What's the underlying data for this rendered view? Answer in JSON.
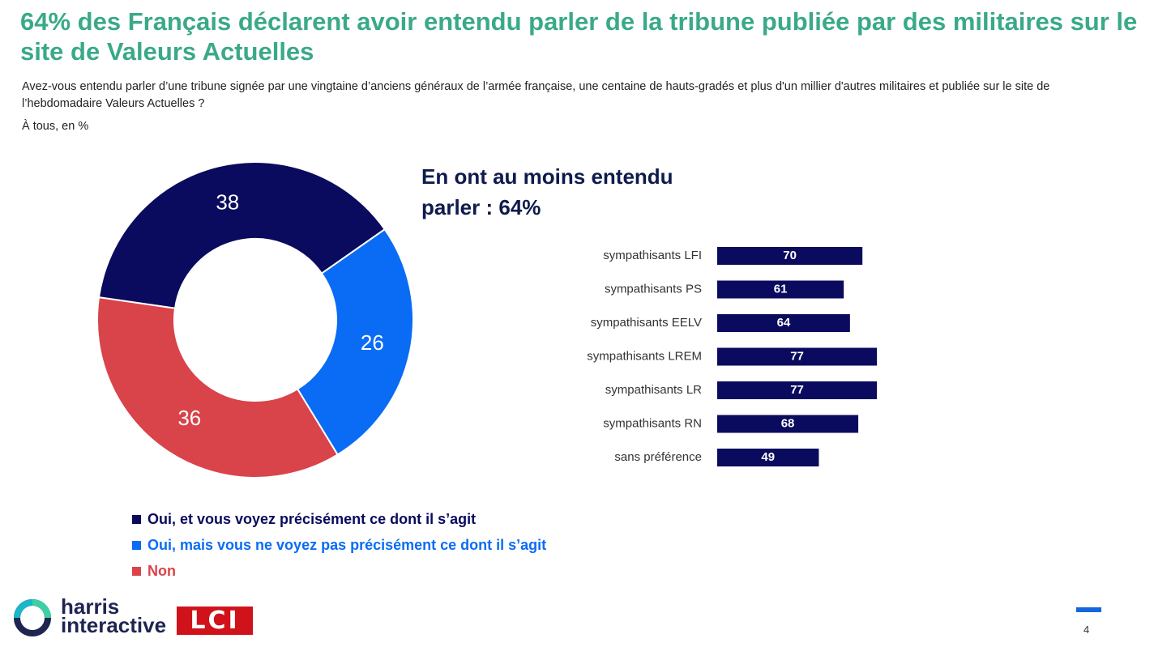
{
  "title": "64% des Français déclarent avoir entendu parler de la tribune publiée par des militaires sur le site de Valeurs Actuelles",
  "question": "Avez-vous entendu parler d’une tribune signée par une vingtaine d’anciens généraux de l’armée française, une centaine de hauts-gradés et plus d'un millier d'autres militaires et publiée sur le site de l’hebdomadaire Valeurs Actuelles ?",
  "base": "À tous, en %",
  "headline": "En ont au moins entendu parler : 64%",
  "legend": [
    {
      "label": "Oui, et vous voyez précisément ce dont il s’agit",
      "color": "#0a0a5e"
    },
    {
      "label": "Oui, mais vous ne voyez pas précisément ce dont il s’agit",
      "color": "#0a6cf5"
    },
    {
      "label": "Non",
      "color": "#d9434a"
    }
  ],
  "footer": {
    "logo_line1": "harris",
    "logo_line2": "interactive",
    "partner": "LCI",
    "page_number": "4"
  },
  "chart_data": [
    {
      "type": "pie",
      "variant": "donut",
      "labels": [
        "Oui, et vous voyez précisément ce dont il s’agit",
        "Oui, mais vous ne voyez pas précisément ce dont il s’agit",
        "Non"
      ],
      "values": [
        38,
        26,
        36
      ],
      "colors": [
        "#0a0a5e",
        "#0a6cf5",
        "#d9434a"
      ]
    },
    {
      "type": "bar",
      "orientation": "horizontal",
      "categories": [
        "sympathisants LFI",
        "sympathisants PS",
        "sympathisants EELV",
        "sympathisants LREM",
        "sympathisants LR",
        "sympathisants RN",
        "sans préférence"
      ],
      "values": [
        70,
        61,
        64,
        77,
        77,
        68,
        49
      ],
      "color": "#0a0a5e"
    }
  ]
}
